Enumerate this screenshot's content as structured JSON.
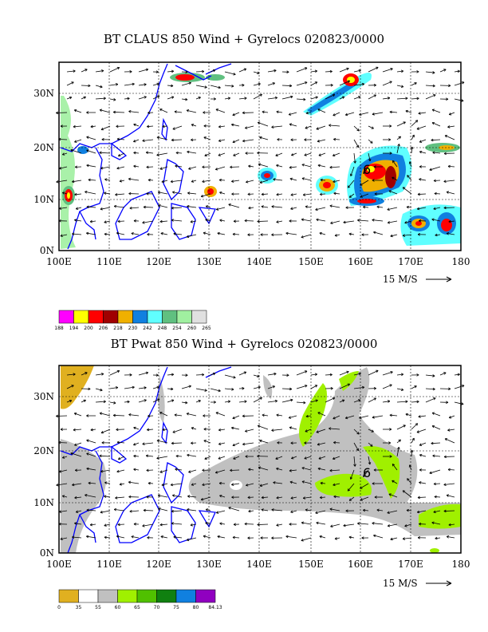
{
  "panel1": {
    "title": "BT CLAUS 850 Wind + Gyrelocs 020823/0000",
    "ref_vector": "15 M/S",
    "x_ticks": [
      "100E",
      "110E",
      "120E",
      "130E",
      "140E",
      "150E",
      "160E",
      "170E",
      "180"
    ],
    "y_ticks": [
      "30N",
      "20N",
      "10N",
      "0N"
    ],
    "colorbar": {
      "labels": [
        "188",
        "194",
        "200",
        "206",
        "218",
        "230",
        "242",
        "248",
        "254",
        "260",
        "265"
      ],
      "colors": [
        "#ff00ff",
        "#ffff00",
        "#ff0000",
        "#a00000",
        "#f0b000",
        "#1080e0",
        "#60ffff",
        "#60c080",
        "#a0f0a0",
        "#e0e0e0"
      ]
    },
    "gyre_marker": "6"
  },
  "panel2": {
    "title": "BT Pwat 850 Wind + Gyrelocs 020823/0000",
    "ref_vector": "15 M/S",
    "x_ticks": [
      "100E",
      "110E",
      "120E",
      "130E",
      "140E",
      "150E",
      "160E",
      "170E",
      "180"
    ],
    "y_ticks": [
      "30N",
      "20N",
      "10N",
      "0N"
    ],
    "colorbar": {
      "labels": [
        "0",
        "35",
        "55",
        "60",
        "65",
        "70",
        "75",
        "80",
        "84.13"
      ],
      "colors": [
        "#e0b020",
        "#ffffff",
        "#c0c0c0",
        "#a0f000",
        "#50c000",
        "#108010",
        "#1080e0",
        "#9000c0"
      ]
    },
    "gyre_marker": "6"
  }
}
